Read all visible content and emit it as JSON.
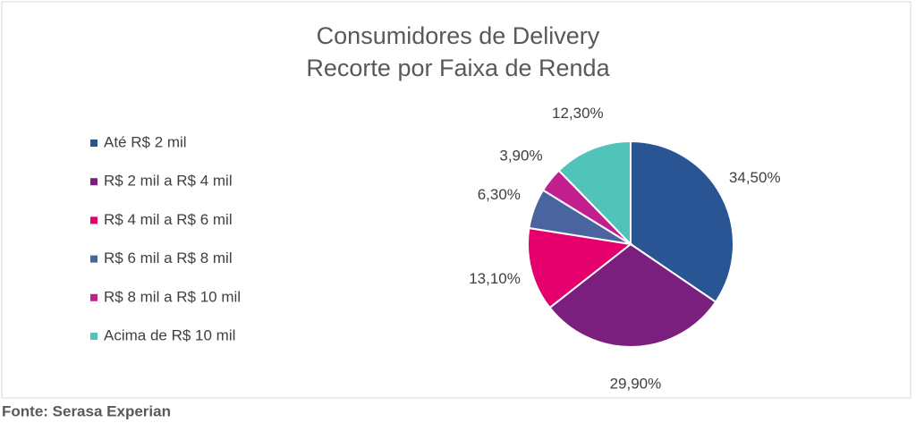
{
  "chart_data": {
    "type": "pie",
    "title": "Consumidores de Delivery",
    "subtitle": "Recorte por Faixa de Renda",
    "categories": [
      "Até R$ 2 mil",
      "R$ 2 mil a R$ 4 mil",
      "R$ 4 mil a R$ 6 mil",
      "R$ 6 mil a R$ 8 mil",
      "R$ 8 mil a R$ 10 mil",
      "Acima de R$ 10 mil"
    ],
    "values": [
      34.5,
      29.9,
      13.1,
      6.3,
      3.9,
      12.3
    ],
    "value_labels": [
      "34,50%",
      "29,90%",
      "13,10%",
      "6,30%",
      "3,90%",
      "12,30%"
    ],
    "colors": [
      "#2a5595",
      "#7a1f7e",
      "#e5006e",
      "#4a64a0",
      "#c21f8e",
      "#52c3b8"
    ],
    "legend": "left",
    "source": "Fonte: Serasa Experian"
  }
}
